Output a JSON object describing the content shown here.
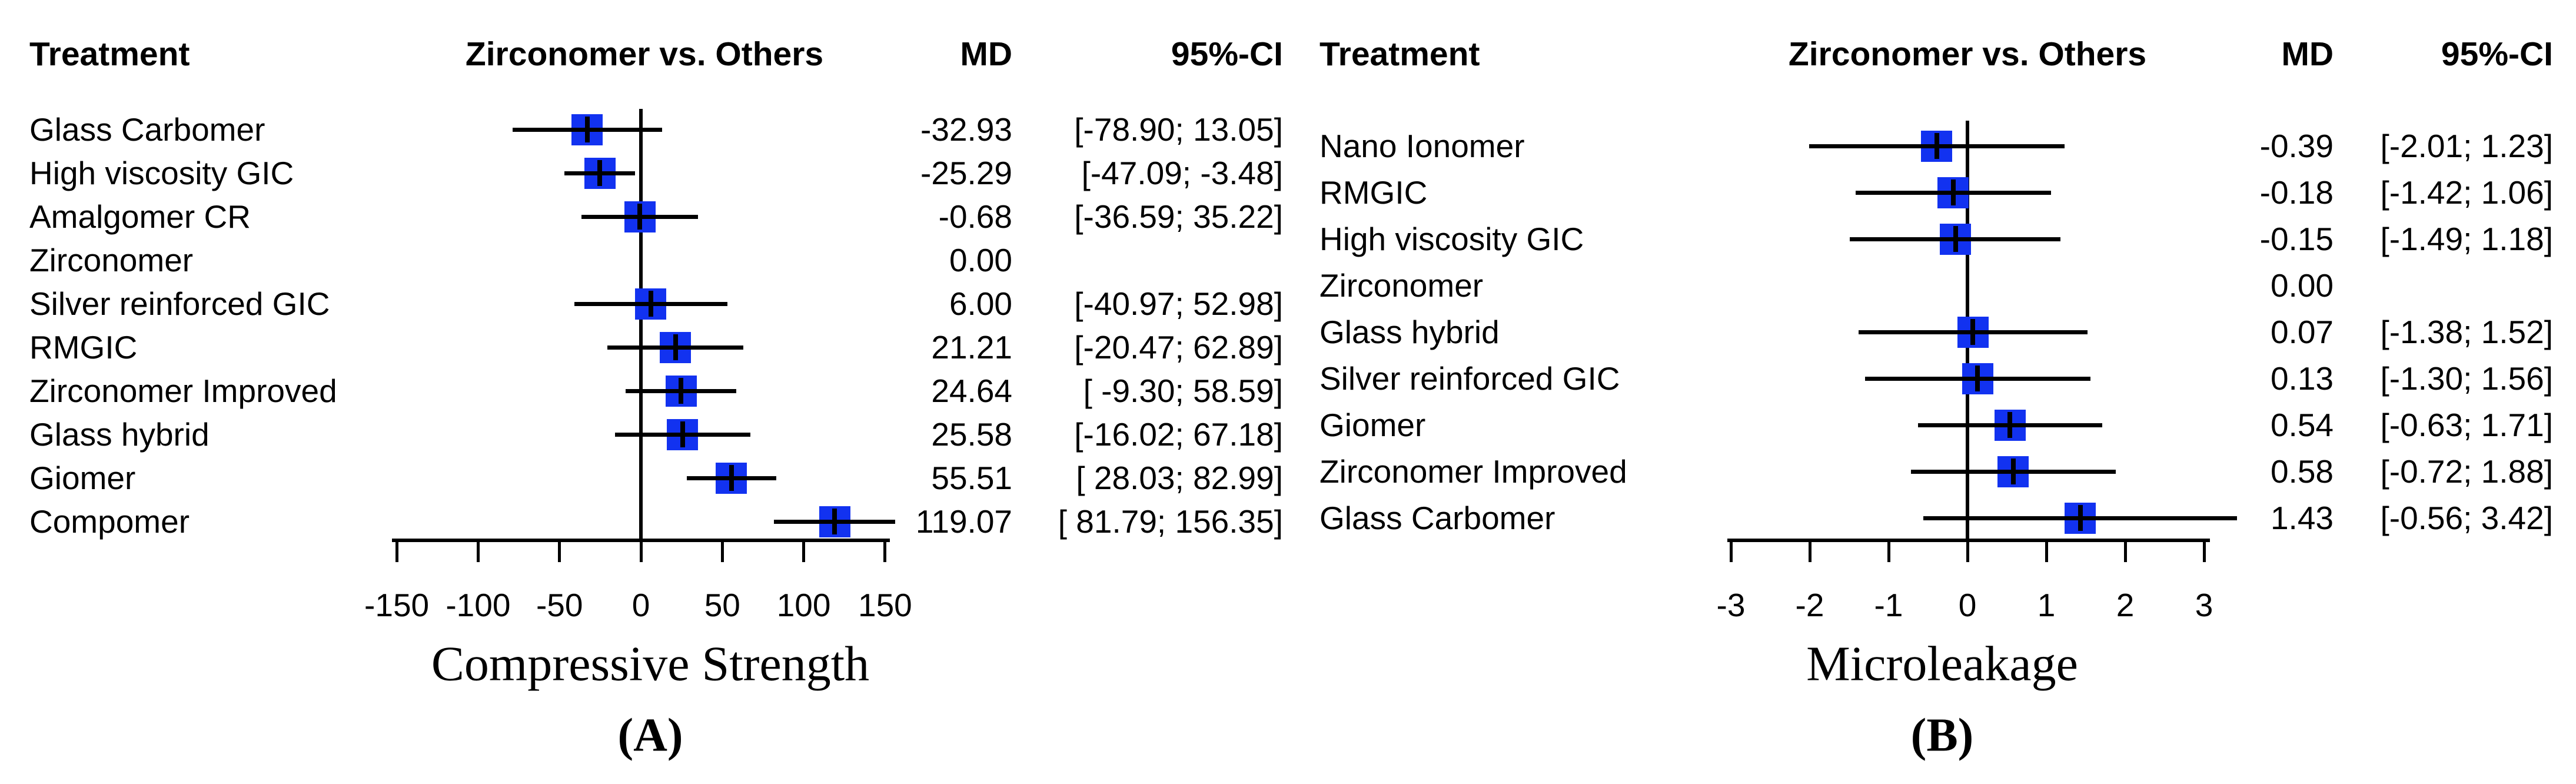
{
  "figure": {
    "background": "#ffffff",
    "text_color": "#000000",
    "line_color": "#000000",
    "marker_color": "#1232f0"
  },
  "chart_data": [
    {
      "type": "scatter",
      "subtype": "forest-plot",
      "panel_letter": "(A)",
      "title": "Compressive Strength",
      "headers": {
        "treatment": "Treatment",
        "comparison": "Zirconomer vs. Others",
        "md": "MD",
        "ci": "95%-CI"
      },
      "reference_treatment": "Zirconomer",
      "xlim": [
        -150,
        150
      ],
      "x_ticks": [
        -150,
        -100,
        -50,
        0,
        50,
        100,
        150
      ],
      "x_tick_labels": [
        "-150",
        "-100",
        "-50",
        "0",
        "50",
        "100",
        "150"
      ],
      "grid": false,
      "legend": false,
      "rows": [
        {
          "treatment": "Glass Carbomer",
          "md": -32.93,
          "ci_low": -78.9,
          "ci_high": 13.05,
          "md_label": "-32.93",
          "ci_label": "[-78.90; 13.05]"
        },
        {
          "treatment": "High viscosity GIC",
          "md": -25.29,
          "ci_low": -47.09,
          "ci_high": -3.48,
          "md_label": "-25.29",
          "ci_label": "[-47.09; -3.48]"
        },
        {
          "treatment": "Amalgomer CR",
          "md": -0.68,
          "ci_low": -36.59,
          "ci_high": 35.22,
          "md_label": "-0.68",
          "ci_label": "[-36.59; 35.22]"
        },
        {
          "treatment": "Zirconomer",
          "md": 0.0,
          "ci_low": null,
          "ci_high": null,
          "md_label": "0.00",
          "ci_label": ""
        },
        {
          "treatment": "Silver reinforced GIC",
          "md": 6.0,
          "ci_low": -40.97,
          "ci_high": 52.98,
          "md_label": "6.00",
          "ci_label": "[-40.97; 52.98]"
        },
        {
          "treatment": "RMGIC",
          "md": 21.21,
          "ci_low": -20.47,
          "ci_high": 62.89,
          "md_label": "21.21",
          "ci_label": "[-20.47; 62.89]"
        },
        {
          "treatment": "Zirconomer Improved",
          "md": 24.64,
          "ci_low": -9.3,
          "ci_high": 58.59,
          "md_label": "24.64",
          "ci_label": "[ -9.30; 58.59]"
        },
        {
          "treatment": "Glass hybrid",
          "md": 25.58,
          "ci_low": -16.02,
          "ci_high": 67.18,
          "md_label": "25.58",
          "ci_label": "[-16.02; 67.18]"
        },
        {
          "treatment": "Giomer",
          "md": 55.51,
          "ci_low": 28.03,
          "ci_high": 82.99,
          "md_label": "55.51",
          "ci_label": "[ 28.03; 82.99]"
        },
        {
          "treatment": "Compomer",
          "md": 119.07,
          "ci_low": 81.79,
          "ci_high": 156.35,
          "md_label": "119.07",
          "ci_label": "[ 81.79; 156.35]"
        }
      ]
    },
    {
      "type": "scatter",
      "subtype": "forest-plot",
      "panel_letter": "(B)",
      "title": "Microleakage",
      "headers": {
        "treatment": "Treatment",
        "comparison": "Zirconomer vs. Others",
        "md": "MD",
        "ci": "95%-CI"
      },
      "reference_treatment": "Zirconomer",
      "xlim": [
        -3,
        3
      ],
      "x_ticks": [
        -3,
        -2,
        -1,
        0,
        1,
        2,
        3
      ],
      "x_tick_labels": [
        "-3",
        "-2",
        "-1",
        "0",
        "1",
        "2",
        "3"
      ],
      "grid": false,
      "legend": false,
      "rows": [
        {
          "treatment": "Nano Ionomer",
          "md": -0.39,
          "ci_low": -2.01,
          "ci_high": 1.23,
          "md_label": "-0.39",
          "ci_label": "[-2.01; 1.23]"
        },
        {
          "treatment": "RMGIC",
          "md": -0.18,
          "ci_low": -1.42,
          "ci_high": 1.06,
          "md_label": "-0.18",
          "ci_label": "[-1.42; 1.06]"
        },
        {
          "treatment": "High viscosity GIC",
          "md": -0.15,
          "ci_low": -1.49,
          "ci_high": 1.18,
          "md_label": "-0.15",
          "ci_label": "[-1.49; 1.18]"
        },
        {
          "treatment": "Zirconomer",
          "md": 0.0,
          "ci_low": null,
          "ci_high": null,
          "md_label": "0.00",
          "ci_label": ""
        },
        {
          "treatment": "Glass hybrid",
          "md": 0.07,
          "ci_low": -1.38,
          "ci_high": 1.52,
          "md_label": "0.07",
          "ci_label": "[-1.38; 1.52]"
        },
        {
          "treatment": "Silver reinforced GIC",
          "md": 0.13,
          "ci_low": -1.3,
          "ci_high": 1.56,
          "md_label": "0.13",
          "ci_label": "[-1.30; 1.56]"
        },
        {
          "treatment": "Giomer",
          "md": 0.54,
          "ci_low": -0.63,
          "ci_high": 1.71,
          "md_label": "0.54",
          "ci_label": "[-0.63; 1.71]"
        },
        {
          "treatment": "Zirconomer Improved",
          "md": 0.58,
          "ci_low": -0.72,
          "ci_high": 1.88,
          "md_label": "0.58",
          "ci_label": "[-0.72; 1.88]"
        },
        {
          "treatment": "Glass Carbomer",
          "md": 1.43,
          "ci_low": -0.56,
          "ci_high": 3.42,
          "md_label": "1.43",
          "ci_label": "[-0.56; 3.42]"
        }
      ]
    }
  ]
}
